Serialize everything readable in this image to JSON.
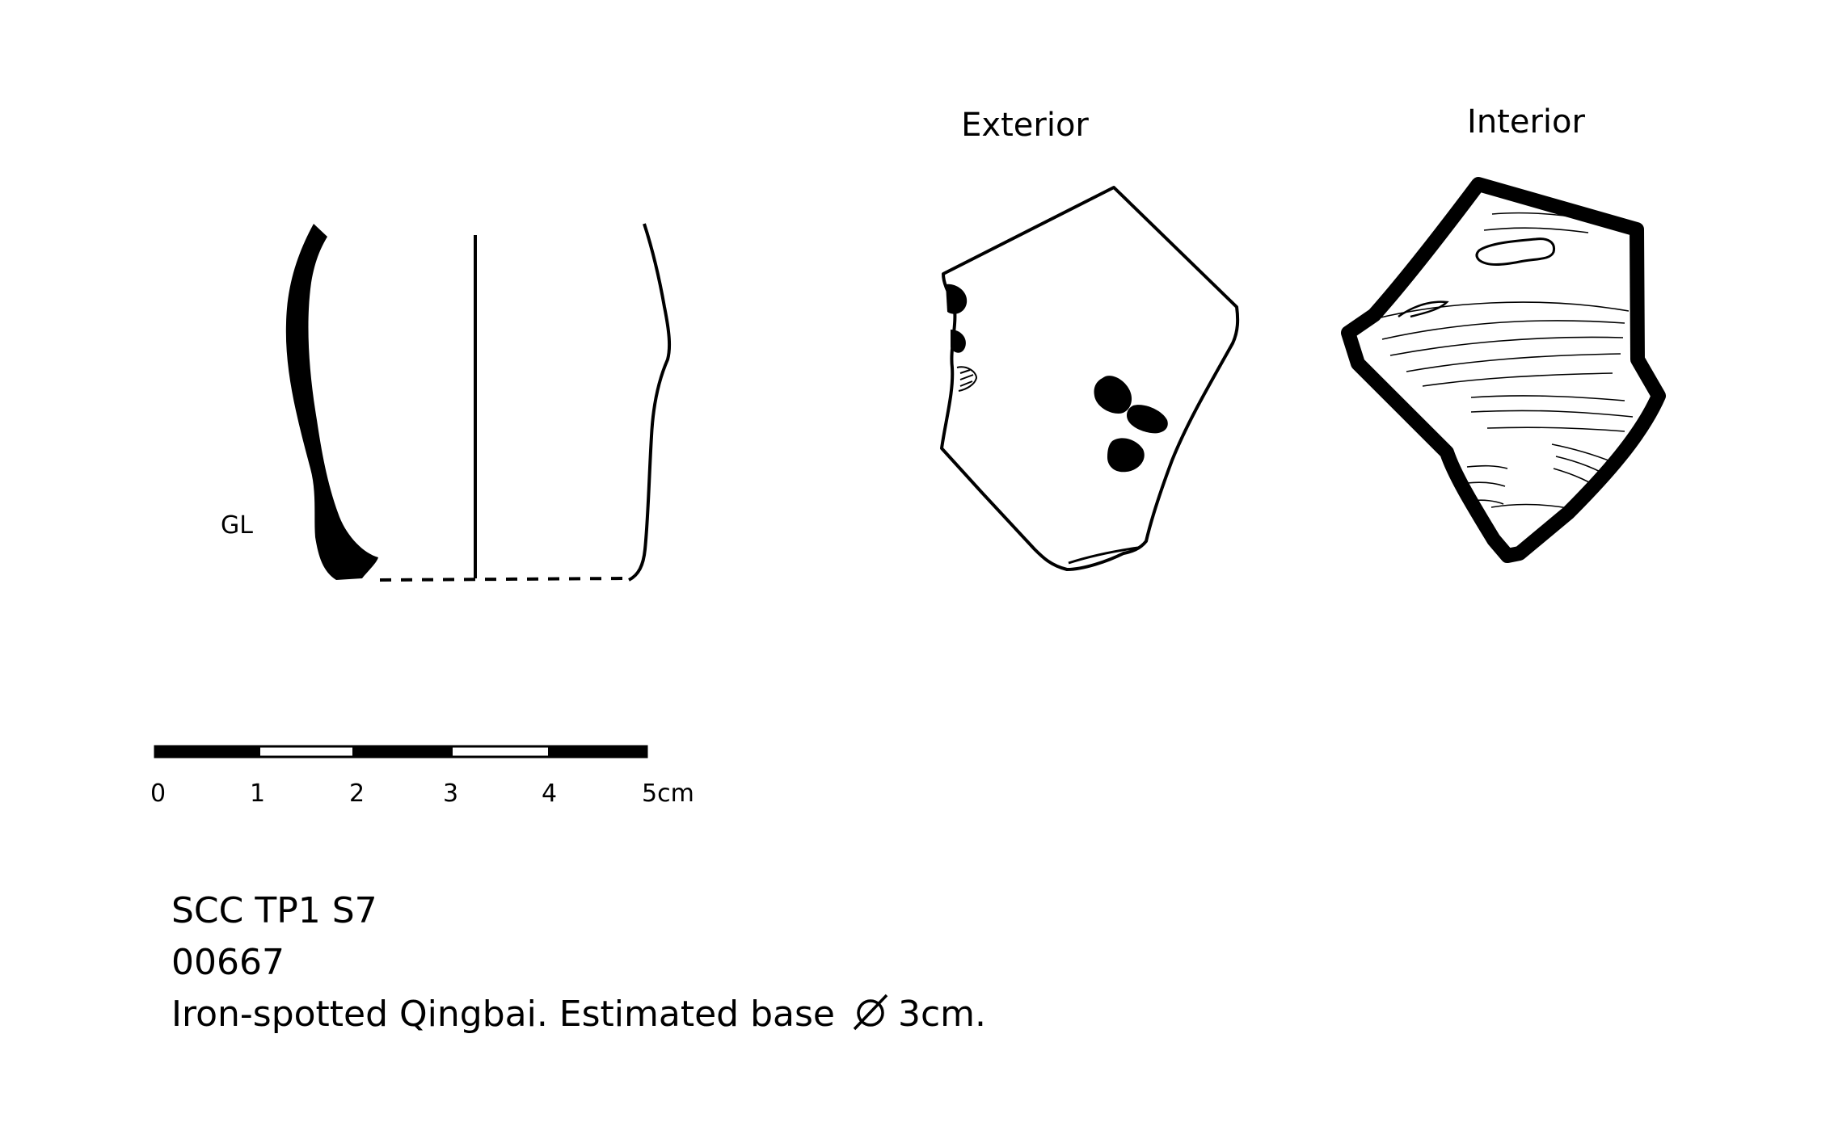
{
  "views": {
    "exterior_label": "Exterior",
    "interior_label": "Interior"
  },
  "profile": {
    "glaze_line_label": "GL"
  },
  "scale": {
    "ticks": [
      "0",
      "1",
      "2",
      "3",
      "4",
      "5cm"
    ]
  },
  "caption": {
    "line1": "SCC TP1 S7",
    "line2": "00667",
    "line3_prefix": "Iron-spotted Qingbai. Estimated base",
    "diameter_symbol_icon": "diameter-icon",
    "line3_suffix": "3cm."
  },
  "colors": {
    "ink": "#000000",
    "background": "#ffffff"
  }
}
